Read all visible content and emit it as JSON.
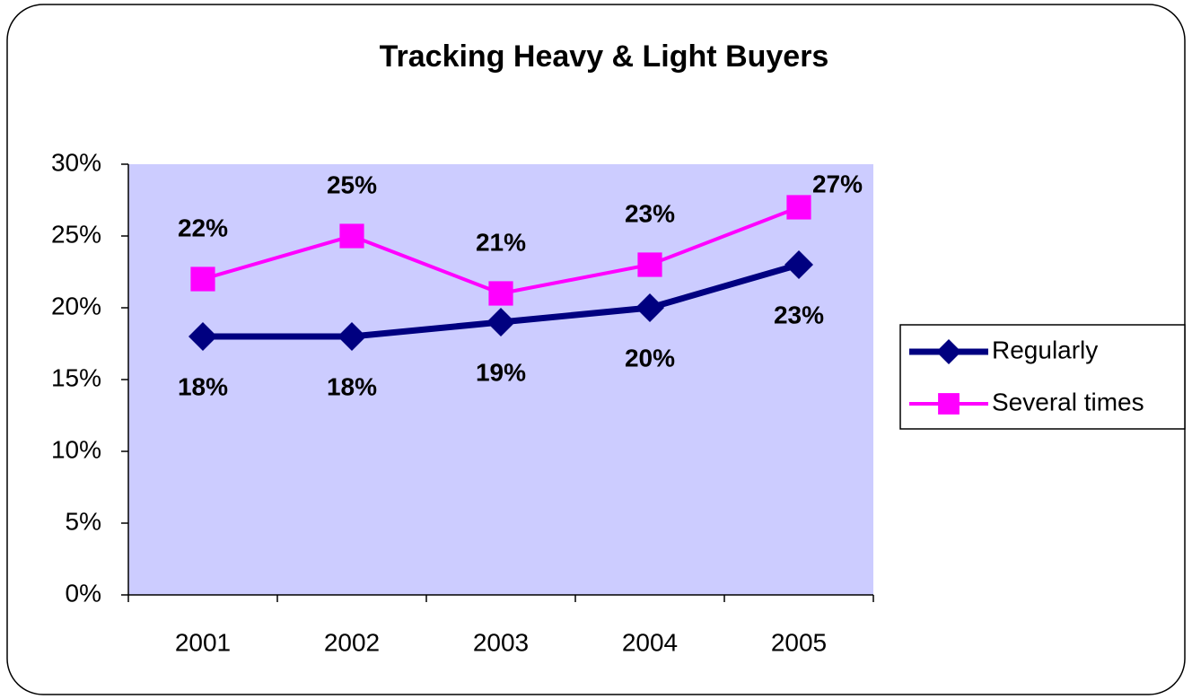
{
  "chart_data": {
    "type": "line",
    "title": "Tracking Heavy & Light Buyers",
    "categories": [
      "2001",
      "2002",
      "2003",
      "2004",
      "2005"
    ],
    "series": [
      {
        "name": "Regularly",
        "color": "#000080",
        "marker": "diamond",
        "values": [
          18,
          18,
          19,
          20,
          23
        ],
        "value_labels": [
          "18%",
          "18%",
          "19%",
          "20%",
          "23%"
        ]
      },
      {
        "name": "Several times",
        "color": "#ff00ff",
        "marker": "square",
        "values": [
          22,
          25,
          21,
          23,
          27
        ],
        "value_labels": [
          "22%",
          "25%",
          "21%",
          "23%",
          "27%"
        ]
      }
    ],
    "ylim": [
      0,
      30
    ],
    "yticks": [
      {
        "value": 0,
        "label": "0%"
      },
      {
        "value": 5,
        "label": "5%"
      },
      {
        "value": 10,
        "label": "10%"
      },
      {
        "value": 15,
        "label": "15%"
      },
      {
        "value": 20,
        "label": "20%"
      },
      {
        "value": 25,
        "label": "25%"
      },
      {
        "value": 30,
        "label": "30%"
      }
    ],
    "grid": false,
    "legend": "right",
    "plot_background": "#ccccff"
  }
}
